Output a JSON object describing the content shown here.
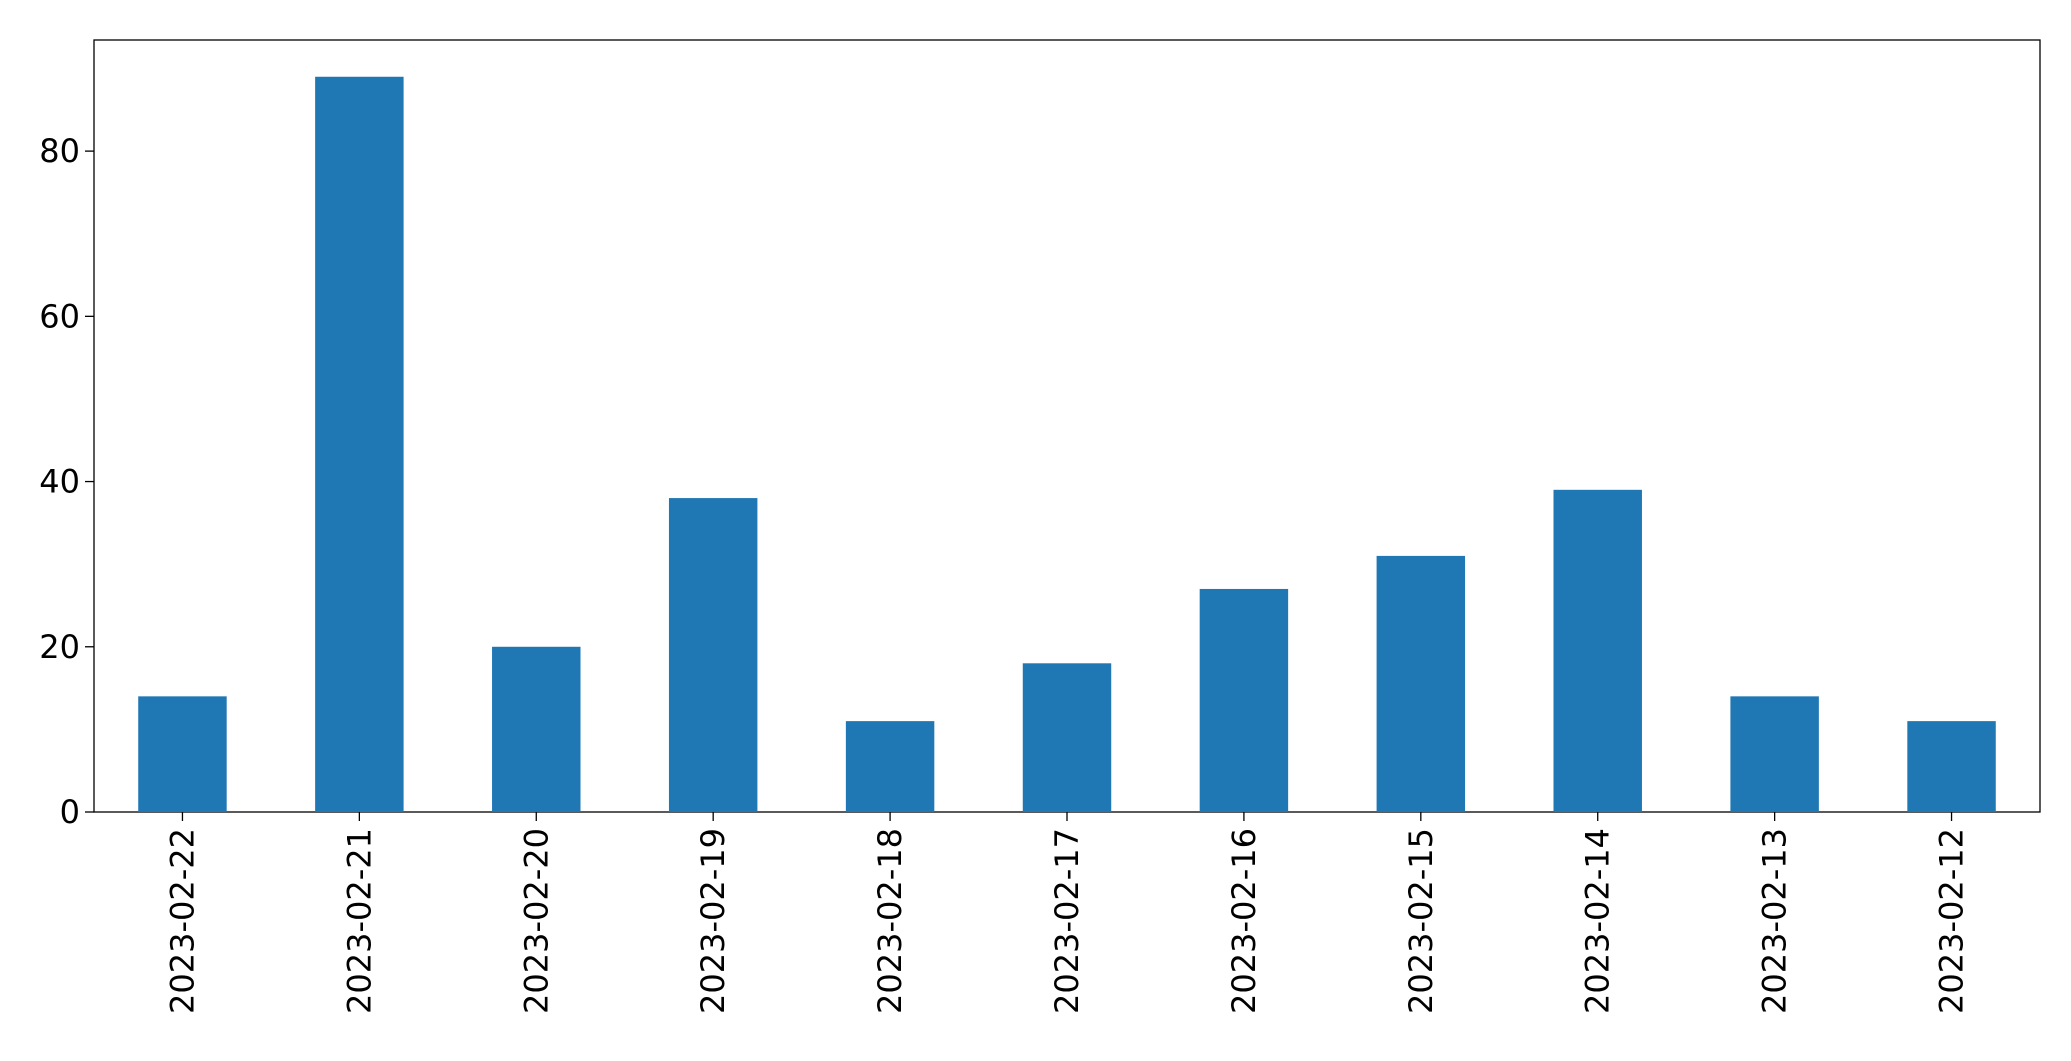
{
  "chart_data": {
    "type": "bar",
    "categories": [
      "2023-02-22",
      "2023-02-21",
      "2023-02-20",
      "2023-02-19",
      "2023-02-18",
      "2023-02-17",
      "2023-02-16",
      "2023-02-15",
      "2023-02-14",
      "2023-02-13",
      "2023-02-12"
    ],
    "values": [
      14,
      89,
      20,
      38,
      11,
      18,
      27,
      31,
      39,
      14,
      11
    ],
    "color": "#1f77b4",
    "ylim": [
      0,
      93.45
    ],
    "yticks": [
      0,
      20,
      40,
      60,
      80
    ],
    "grid": false
  }
}
